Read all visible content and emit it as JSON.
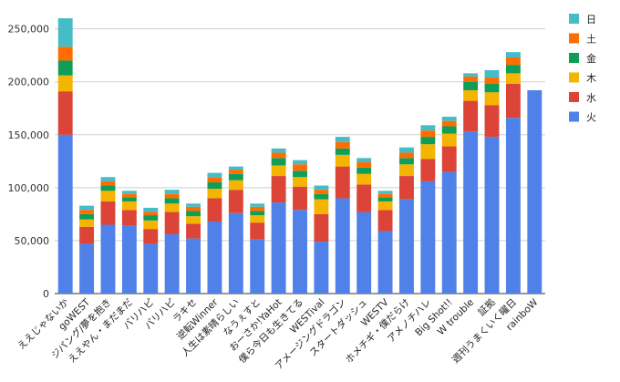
{
  "chart_data": {
    "type": "bar",
    "stacked": true,
    "title": "",
    "xlabel": "",
    "ylabel": "",
    "ylim": [
      0,
      260000
    ],
    "yticks": [
      "0",
      "50,000",
      "100,000",
      "150,000",
      "200,000",
      "250,000"
    ],
    "ytick_values": [
      0,
      50000,
      100000,
      150000,
      200000,
      250000
    ],
    "grid": true,
    "legend_position": "right",
    "categories": [
      "ええじゃないか",
      "goWEST",
      "ジパング/夢を抱き",
      "ええやん・まだまだ",
      "バリハピ",
      "バリハピ",
      "ラキセ",
      "逆転Winner",
      "人生は素晴らしい",
      "なうぇすと",
      "おーさか!YaHot",
      "僕ら今日も生きてる",
      "WESTival",
      "アメージングドラゴン",
      "スタートダッシュ",
      "WESTV",
      "ホメチギ・僕だらけ",
      "アメノチハレ",
      "Big Shot!!",
      "W trouble",
      "証拠",
      "週刊うまくいく曜日",
      "rainboW"
    ],
    "series": [
      {
        "name": "火",
        "color": "#4f81e8",
        "values": [
          150000,
          47000,
          65000,
          64000,
          47000,
          56000,
          52000,
          68000,
          76000,
          51000,
          86000,
          79000,
          49000,
          90000,
          77000,
          59000,
          89000,
          106000,
          115000,
          153000,
          148000,
          166000,
          192000
        ]
      },
      {
        "name": "水",
        "color": "#db4437",
        "values": [
          41000,
          16000,
          22000,
          15000,
          14000,
          21000,
          14000,
          22000,
          22000,
          16000,
          25000,
          22000,
          26000,
          30000,
          26000,
          20000,
          22000,
          21000,
          24000,
          29000,
          30000,
          32000,
          0
        ]
      },
      {
        "name": "木",
        "color": "#f4b400",
        "values": [
          15000,
          7000,
          10000,
          8000,
          8000,
          8000,
          7000,
          9000,
          9000,
          7000,
          10000,
          9000,
          14000,
          11000,
          10000,
          8000,
          11000,
          14000,
          12000,
          10000,
          12000,
          10000,
          0
        ]
      },
      {
        "name": "金",
        "color": "#0f9d58",
        "values": [
          14000,
          5000,
          5000,
          4000,
          5000,
          5000,
          5000,
          6000,
          6000,
          4000,
          7000,
          6000,
          5000,
          6000,
          6000,
          4000,
          6000,
          7000,
          7000,
          8000,
          8000,
          8000,
          0
        ]
      },
      {
        "name": "土",
        "color": "#ff6d01",
        "values": [
          13000,
          4000,
          4000,
          3000,
          3000,
          4000,
          4000,
          5000,
          4000,
          4000,
          5000,
          6000,
          4000,
          6000,
          5000,
          3000,
          5000,
          6000,
          5000,
          5000,
          6000,
          7000,
          0
        ]
      },
      {
        "name": "日",
        "color": "#46bdc6",
        "values": [
          27000,
          4000,
          4000,
          3000,
          4000,
          4000,
          3000,
          4000,
          3000,
          3000,
          4000,
          4000,
          4000,
          5000,
          4000,
          3000,
          5000,
          5000,
          4000,
          3000,
          7000,
          5000,
          0
        ]
      }
    ],
    "legend_order": [
      "日",
      "土",
      "金",
      "木",
      "水",
      "火"
    ]
  }
}
